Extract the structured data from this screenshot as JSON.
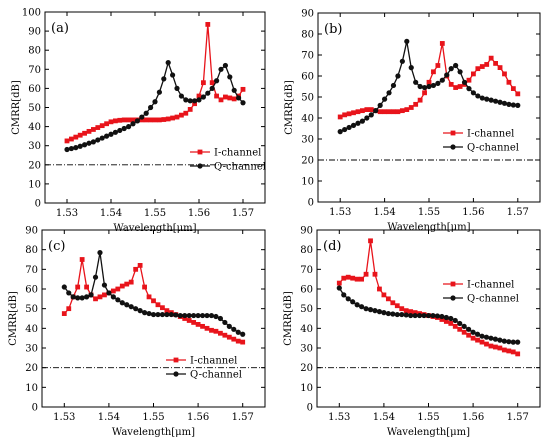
{
  "chart_data": [
    {
      "type": "line",
      "panel_label": "(a)",
      "xlabel": "Wavelength[μm]",
      "ylabel": "CMRR[dB]",
      "xlim": [
        1.525,
        1.575
      ],
      "ylim": [
        0,
        100
      ],
      "xticks": [
        "1.53",
        "1.54",
        "1.55",
        "1.56",
        "1.57"
      ],
      "yticks": [
        "0",
        "10",
        "20",
        "30",
        "40",
        "50",
        "60",
        "70",
        "80",
        "90",
        "100"
      ],
      "legend_position": "bottom-right",
      "reference_line": 20,
      "series": [
        {
          "name": "I-channel",
          "color": "#e8141b",
          "marker": "square",
          "x": [
            1.53,
            1.531,
            1.532,
            1.533,
            1.534,
            1.535,
            1.536,
            1.537,
            1.538,
            1.539,
            1.54,
            1.541,
            1.542,
            1.543,
            1.544,
            1.545,
            1.546,
            1.547,
            1.548,
            1.549,
            1.55,
            1.551,
            1.552,
            1.553,
            1.554,
            1.555,
            1.556,
            1.557,
            1.558,
            1.559,
            1.56,
            1.561,
            1.562,
            1.563,
            1.564,
            1.565,
            1.566,
            1.567,
            1.568,
            1.569,
            1.57
          ],
          "y": [
            32.5,
            33.5,
            34.5,
            35.5,
            36.5,
            37.5,
            38.5,
            39.5,
            40.5,
            41.5,
            42.5,
            43,
            43.3,
            43.5,
            43.5,
            43.5,
            43.5,
            43.5,
            43.5,
            43.5,
            43.5,
            43.5,
            43.7,
            44,
            44.5,
            45,
            46,
            47,
            49,
            52,
            56,
            63,
            93.5,
            63,
            56,
            54,
            55.5,
            55,
            54.5,
            56,
            59.5
          ]
        },
        {
          "name": "Q-channel",
          "color": "#111111",
          "marker": "circle",
          "x": [
            1.53,
            1.531,
            1.532,
            1.533,
            1.534,
            1.535,
            1.536,
            1.537,
            1.538,
            1.539,
            1.54,
            1.541,
            1.542,
            1.543,
            1.544,
            1.545,
            1.546,
            1.547,
            1.548,
            1.549,
            1.55,
            1.551,
            1.552,
            1.553,
            1.554,
            1.555,
            1.556,
            1.557,
            1.558,
            1.559,
            1.56,
            1.561,
            1.562,
            1.563,
            1.564,
            1.565,
            1.566,
            1.567,
            1.568,
            1.569,
            1.57
          ],
          "y": [
            28,
            28.5,
            29,
            29.7,
            30.5,
            31.3,
            32,
            33,
            34,
            35,
            36,
            37,
            38,
            39,
            40,
            41.5,
            43,
            45,
            47,
            50,
            53,
            58,
            65,
            73.5,
            67,
            60,
            56,
            54,
            53.5,
            53.5,
            54,
            55.5,
            57.5,
            60,
            64,
            70,
            72,
            66,
            59,
            55,
            52.5
          ]
        }
      ]
    },
    {
      "type": "line",
      "panel_label": "(b)",
      "xlabel": "Wavelength[μm]",
      "ylabel": "CMRR[dB]",
      "xlim": [
        1.525,
        1.575
      ],
      "ylim": [
        0,
        90
      ],
      "xticks": [
        "1.53",
        "1.54",
        "1.55",
        "1.56",
        "1.57"
      ],
      "yticks": [
        "0",
        "10",
        "20",
        "30",
        "40",
        "50",
        "60",
        "70",
        "80",
        "90"
      ],
      "legend_position": "right",
      "reference_line": 20,
      "series": [
        {
          "name": "I-channel",
          "color": "#e8141b",
          "marker": "square",
          "x": [
            1.53,
            1.531,
            1.532,
            1.533,
            1.534,
            1.535,
            1.536,
            1.537,
            1.538,
            1.539,
            1.54,
            1.541,
            1.542,
            1.543,
            1.544,
            1.545,
            1.546,
            1.547,
            1.548,
            1.549,
            1.55,
            1.551,
            1.552,
            1.553,
            1.554,
            1.555,
            1.556,
            1.557,
            1.558,
            1.559,
            1.56,
            1.561,
            1.562,
            1.563,
            1.564,
            1.565,
            1.566,
            1.567,
            1.568,
            1.569,
            1.57
          ],
          "y": [
            40.5,
            41.5,
            42,
            42.5,
            43,
            43.5,
            44,
            44,
            43.5,
            43,
            43,
            43,
            43,
            43,
            43.5,
            44,
            45,
            46.5,
            48.5,
            52,
            57,
            62,
            65,
            75.5,
            60,
            56,
            54.5,
            55,
            56,
            58,
            61,
            63.5,
            64.5,
            65.5,
            68.5,
            66,
            64,
            61,
            57,
            54,
            51.5
          ]
        },
        {
          "name": "Q-channel",
          "color": "#111111",
          "marker": "circle",
          "x": [
            1.53,
            1.531,
            1.532,
            1.533,
            1.534,
            1.535,
            1.536,
            1.537,
            1.538,
            1.539,
            1.54,
            1.541,
            1.542,
            1.543,
            1.544,
            1.545,
            1.546,
            1.547,
            1.548,
            1.549,
            1.55,
            1.551,
            1.552,
            1.553,
            1.554,
            1.555,
            1.556,
            1.557,
            1.558,
            1.559,
            1.56,
            1.561,
            1.562,
            1.563,
            1.564,
            1.565,
            1.566,
            1.567,
            1.568,
            1.569,
            1.57
          ],
          "y": [
            33.5,
            34.5,
            35.5,
            36.5,
            37.5,
            38.5,
            40,
            41.5,
            43.5,
            46,
            49,
            52,
            55.5,
            60,
            67,
            76.5,
            64,
            57,
            55,
            54.5,
            55,
            55.5,
            56.5,
            58,
            60.5,
            63.5,
            65,
            62,
            57,
            54,
            52,
            50.5,
            49.5,
            49,
            48.5,
            48,
            47.5,
            47,
            46.5,
            46.2,
            46
          ]
        }
      ]
    },
    {
      "type": "line",
      "panel_label": "(c)",
      "xlabel": "Wavelength[μm]",
      "ylabel": "CMRR[dB]",
      "xlim": [
        1.525,
        1.575
      ],
      "ylim": [
        0,
        90
      ],
      "xticks": [
        "1.53",
        "1.54",
        "1.55",
        "1.56",
        "1.57"
      ],
      "yticks": [
        "0",
        "10",
        "20",
        "30",
        "40",
        "50",
        "60",
        "70",
        "80",
        "90"
      ],
      "legend_position": "bottom-right",
      "reference_line": 20,
      "series": [
        {
          "name": "I-channel",
          "color": "#e8141b",
          "marker": "square",
          "x": [
            1.53,
            1.531,
            1.532,
            1.533,
            1.534,
            1.535,
            1.536,
            1.537,
            1.538,
            1.539,
            1.54,
            1.541,
            1.542,
            1.543,
            1.544,
            1.545,
            1.546,
            1.547,
            1.548,
            1.549,
            1.55,
            1.551,
            1.552,
            1.553,
            1.554,
            1.555,
            1.556,
            1.557,
            1.558,
            1.559,
            1.56,
            1.561,
            1.562,
            1.563,
            1.564,
            1.565,
            1.566,
            1.567,
            1.568,
            1.569,
            1.57
          ],
          "y": [
            47.5,
            50,
            56,
            61,
            75,
            61,
            57,
            55,
            56,
            57,
            58,
            59,
            60,
            61.5,
            62.5,
            63.5,
            70,
            72,
            61,
            56,
            54,
            52,
            50.5,
            49,
            48,
            47,
            46,
            45,
            44,
            43,
            42,
            41,
            40,
            39,
            38.5,
            37.5,
            36.5,
            35.5,
            34.5,
            33.5,
            33
          ]
        },
        {
          "name": "Q-channel",
          "color": "#111111",
          "marker": "circle",
          "x": [
            1.53,
            1.531,
            1.532,
            1.533,
            1.534,
            1.535,
            1.536,
            1.537,
            1.538,
            1.539,
            1.54,
            1.541,
            1.542,
            1.543,
            1.544,
            1.545,
            1.546,
            1.547,
            1.548,
            1.549,
            1.55,
            1.551,
            1.552,
            1.553,
            1.554,
            1.555,
            1.556,
            1.557,
            1.558,
            1.559,
            1.56,
            1.561,
            1.562,
            1.563,
            1.564,
            1.565,
            1.566,
            1.567,
            1.568,
            1.569,
            1.57
          ],
          "y": [
            61,
            58,
            56,
            55.5,
            55.5,
            56,
            57,
            66,
            78.5,
            62,
            58,
            56,
            54.5,
            53,
            52,
            51,
            50,
            49,
            48,
            47.5,
            47,
            47,
            47,
            47,
            47,
            46.8,
            46.5,
            46.5,
            46.5,
            46.5,
            46.5,
            46.5,
            46.5,
            46.5,
            46,
            45,
            43,
            41,
            39.5,
            38,
            37
          ]
        }
      ]
    },
    {
      "type": "line",
      "panel_label": "(d)",
      "xlabel": "Wavelength[μm]",
      "ylabel": "CMRR[dB]",
      "xlim": [
        1.525,
        1.575
      ],
      "ylim": [
        0,
        90
      ],
      "xticks": [
        "1.53",
        "1.54",
        "1.55",
        "1.56",
        "1.57"
      ],
      "yticks": [
        "0",
        "10",
        "20",
        "30",
        "40",
        "50",
        "60",
        "70",
        "80",
        "90"
      ],
      "legend_position": "right",
      "reference_line": 20,
      "series": [
        {
          "name": "I-channel",
          "color": "#e8141b",
          "marker": "square",
          "x": [
            1.53,
            1.531,
            1.532,
            1.533,
            1.534,
            1.535,
            1.536,
            1.537,
            1.538,
            1.539,
            1.54,
            1.541,
            1.542,
            1.543,
            1.544,
            1.545,
            1.546,
            1.547,
            1.548,
            1.549,
            1.55,
            1.551,
            1.552,
            1.553,
            1.554,
            1.555,
            1.556,
            1.557,
            1.558,
            1.559,
            1.56,
            1.561,
            1.562,
            1.563,
            1.564,
            1.565,
            1.566,
            1.567,
            1.568,
            1.569,
            1.57
          ],
          "y": [
            63,
            65.5,
            66,
            65.5,
            65,
            65,
            67.5,
            84.5,
            67.5,
            60,
            57,
            55,
            53,
            51.5,
            50,
            49,
            48.5,
            48,
            47.5,
            47,
            46.5,
            46,
            45.5,
            44.5,
            43.5,
            42.5,
            41,
            39.5,
            38,
            36.5,
            35,
            34,
            33,
            32,
            31,
            30.5,
            30,
            29,
            28.5,
            28,
            27
          ]
        },
        {
          "name": "Q-channel",
          "color": "#111111",
          "marker": "circle",
          "x": [
            1.53,
            1.531,
            1.532,
            1.533,
            1.534,
            1.535,
            1.536,
            1.537,
            1.538,
            1.539,
            1.54,
            1.541,
            1.542,
            1.543,
            1.544,
            1.545,
            1.546,
            1.547,
            1.548,
            1.549,
            1.55,
            1.551,
            1.552,
            1.553,
            1.554,
            1.555,
            1.556,
            1.557,
            1.558,
            1.559,
            1.56,
            1.561,
            1.562,
            1.563,
            1.564,
            1.565,
            1.566,
            1.567,
            1.568,
            1.569,
            1.57
          ],
          "y": [
            60.5,
            57,
            55,
            53.5,
            52,
            51,
            50,
            49.5,
            49,
            48.5,
            48,
            47.5,
            47.3,
            47,
            47,
            46.8,
            46.5,
            46.5,
            46.5,
            46.5,
            46.5,
            46.5,
            46.3,
            46,
            45.5,
            45,
            44,
            42.5,
            41,
            39.5,
            38,
            37,
            36,
            35.5,
            35,
            34.5,
            34,
            33.5,
            33.2,
            33,
            33
          ]
        }
      ]
    }
  ]
}
